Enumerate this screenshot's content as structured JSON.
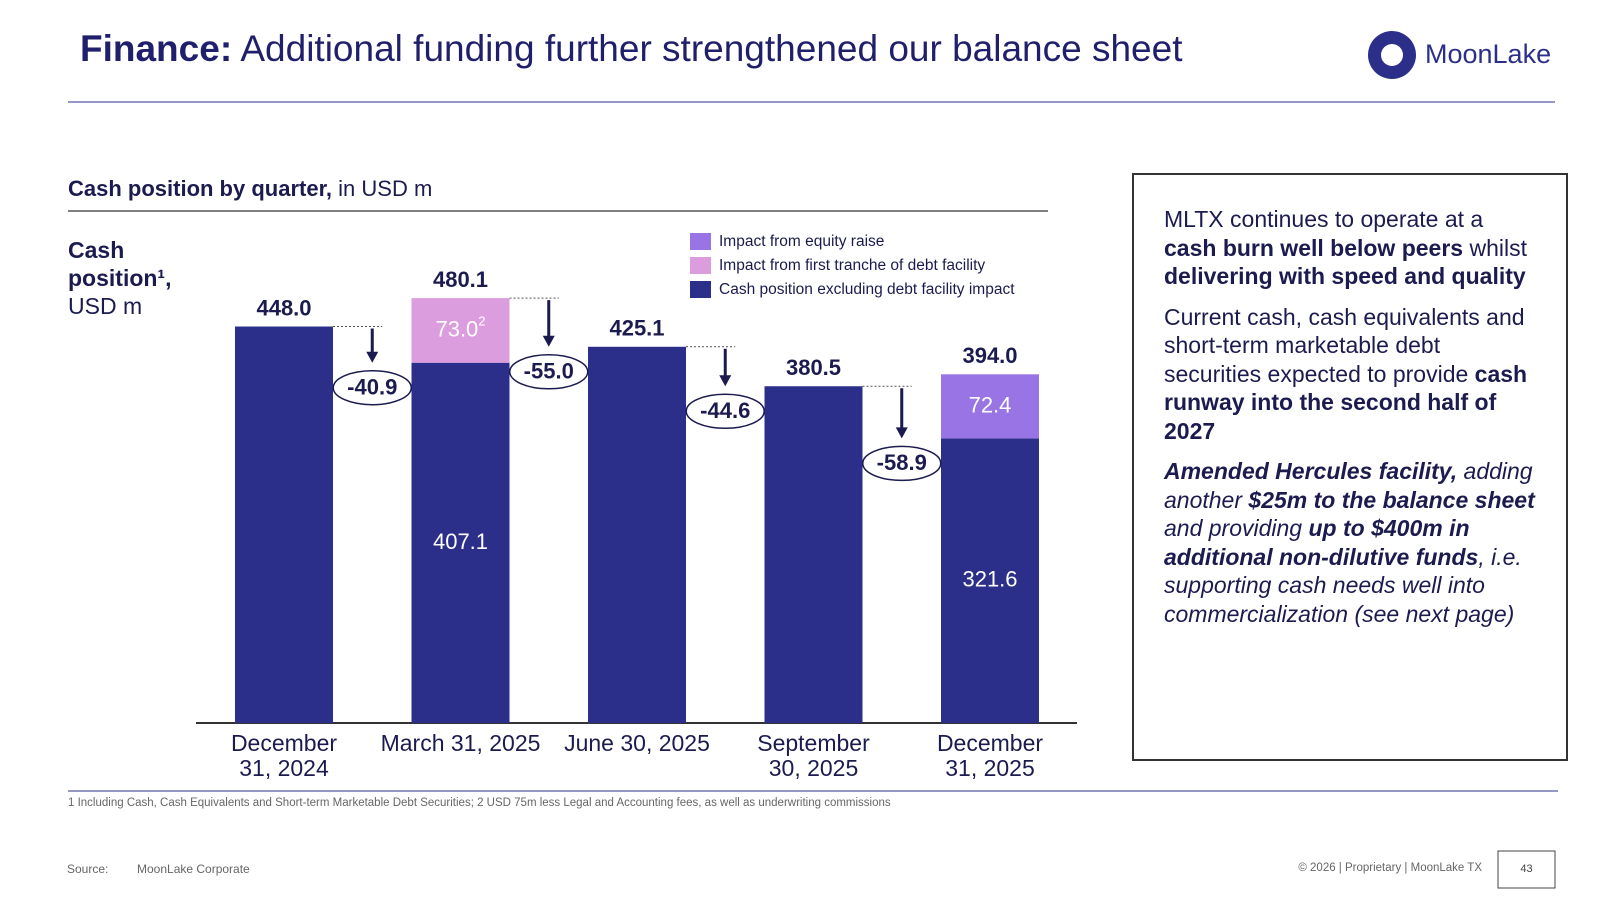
{
  "header": {
    "title_bold": "Finance:",
    "title_rest": " Additional funding further strengthened our balance sheet",
    "logo": "MoonLake"
  },
  "chart_data": {
    "type": "stacked_bar_waterfall",
    "title_bold": "Cash position by quarter,",
    "title_rest": " in USD m",
    "y_label": [
      "Cash",
      "position¹,",
      "USD m"
    ],
    "categories": [
      "December\n31, 2024",
      "March 31, 2025",
      "June 30, 2025",
      "September\n30, 2025",
      "December\n31, 2025"
    ],
    "ylim": [
      0,
      500
    ],
    "series": [
      {
        "name": "Cash position excluding debt facility impact",
        "color": "#2b2f8a",
        "values": [
          448.0,
          407.1,
          425.1,
          380.5,
          321.6
        ],
        "value_labels": [
          null,
          "407.1",
          null,
          null,
          "321.6"
        ]
      },
      {
        "name": "Impact from first tranche of debt facility",
        "color": "#dc9ddf",
        "values": [
          null,
          73.0,
          null,
          null,
          null
        ],
        "value_labels": [
          null,
          "73.0",
          null,
          null,
          null
        ],
        "label_notes": [
          null,
          "2",
          null,
          null,
          null
        ]
      },
      {
        "name": "Impact from equity raise",
        "color": "#9874e4",
        "values": [
          null,
          null,
          null,
          null,
          72.4
        ],
        "value_labels": [
          null,
          null,
          null,
          null,
          "72.4"
        ]
      }
    ],
    "totals": {
      "values": [
        448.0,
        480.1,
        425.1,
        380.5,
        394.0
      ],
      "value_labels": [
        "448.0",
        "480.1",
        "425.1",
        "380.5",
        "394.0"
      ]
    },
    "changes": {
      "values": [
        -40.9,
        -55.0,
        -44.6,
        -58.9
      ],
      "value_labels": [
        "-40.9",
        "-55.0",
        "-44.6",
        "-58.9"
      ]
    }
  },
  "side_panel": {
    "paragraphs": [
      {
        "italic": false,
        "runs": [
          {
            "text": "MLTX continues to operate at a ",
            "style": "normal"
          },
          {
            "text": "cash burn well below peers",
            "style": "bold"
          },
          {
            "text": " whilst ",
            "style": "normal"
          },
          {
            "text": "delivering with speed and quality",
            "style": "bold"
          }
        ]
      },
      {
        "italic": false,
        "runs": [
          {
            "text": "Current cash, cash equivalents and short-term marketable debt securities expected to provide ",
            "style": "normal"
          },
          {
            "text": "cash runway into the second half of 2027",
            "style": "bold"
          }
        ]
      },
      {
        "italic": true,
        "runs": [
          {
            "text": "Amended Hercules facility,",
            "style": "bold"
          },
          {
            "text": " adding another ",
            "style": "normal"
          },
          {
            "text": "$25m to the balance sheet",
            "style": "bold"
          },
          {
            "text": " and providing ",
            "style": "normal"
          },
          {
            "text": "up to $400m in additional non-dilutive funds",
            "style": "bold"
          },
          {
            "text": ", i.e. supporting cash needs well into commercialization (see next page)",
            "style": "normal"
          }
        ]
      }
    ]
  },
  "footnote": "1 Including Cash, Cash Equivalents and Short-term Marketable Debt Securities; 2 USD 75m less Legal and Accounting fees, as well as underwriting commissions",
  "footer": {
    "source_label": "Source:",
    "source": "MoonLake Corporate",
    "rights": "© 2026 | Proprietary | MoonLake TX",
    "page": "43"
  }
}
